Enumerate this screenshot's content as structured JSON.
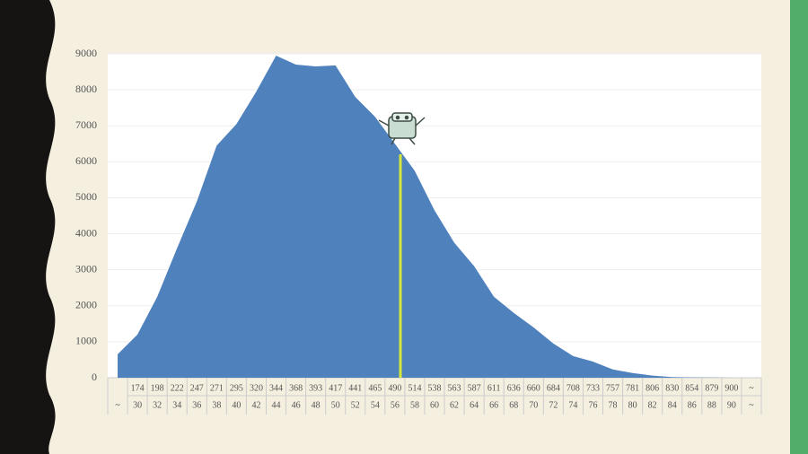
{
  "chart_data": {
    "type": "area",
    "categories": [
      null,
      "174",
      "198",
      "222",
      "247",
      "271",
      "295",
      "320",
      "344",
      "368",
      "393",
      "417",
      "441",
      "465",
      "490",
      "514",
      "538",
      "563",
      "587",
      "611",
      "636",
      "660",
      "684",
      "708",
      "733",
      "757",
      "781",
      "806",
      "830",
      "854",
      "879",
      "900",
      "~"
    ],
    "subcategories": [
      "~",
      "30",
      "32",
      "34",
      "36",
      "38",
      "40",
      "42",
      "44",
      "46",
      "48",
      "50",
      "52",
      "54",
      "56",
      "58",
      "60",
      "62",
      "64",
      "66",
      "68",
      "70",
      "72",
      "74",
      "76",
      "78",
      "80",
      "82",
      "84",
      "86",
      "88",
      "90",
      "~"
    ],
    "values": [
      650,
      1200,
      2250,
      3600,
      4900,
      6450,
      7050,
      7950,
      8950,
      8700,
      8650,
      8680,
      7800,
      7250,
      6500,
      5750,
      4650,
      3750,
      3100,
      2250,
      1800,
      1400,
      950,
      600,
      450,
      230,
      130,
      60,
      20,
      10,
      5,
      0,
      0
    ],
    "color": "#4f81bd",
    "ylim": [
      0,
      9000
    ],
    "yticks": [
      0,
      1000,
      2000,
      3000,
      4000,
      5000,
      6000,
      7000,
      8000,
      9000
    ],
    "grid": true
  }
}
